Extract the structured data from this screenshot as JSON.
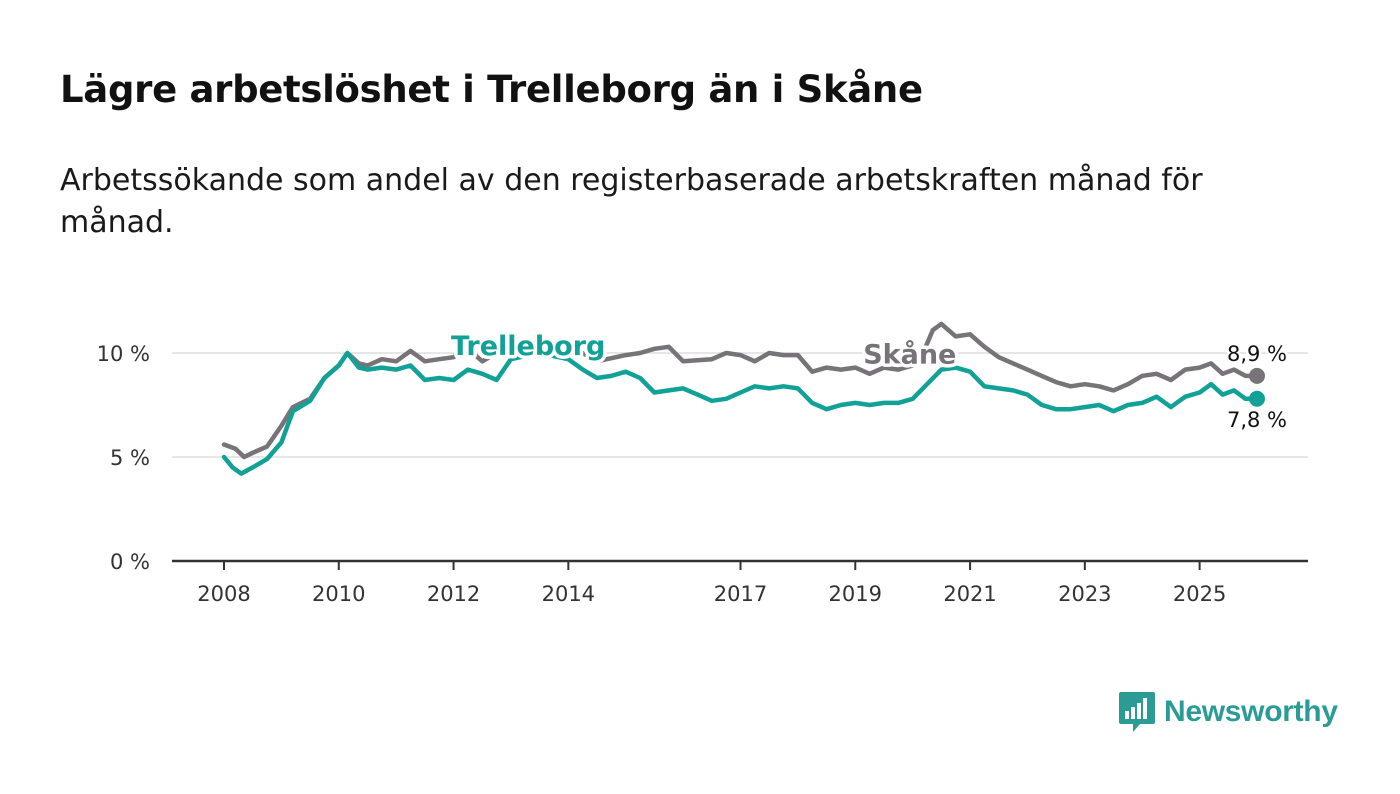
{
  "title": "Lägre arbetslöshet i Trelleborg än i Skåne",
  "subtitle": "Arbetssökande som andel av den registerbaserade arbetskraften månad för månad.",
  "brand": {
    "name": "Newsworthy",
    "icon": "bar-chart-bubble-icon",
    "color": "#2b9c95"
  },
  "colors": {
    "skane": "#777379",
    "trelleborg": "#12a196",
    "grid": "#dddddd",
    "axis": "#333333"
  },
  "chart_data": {
    "type": "line",
    "title": "Lägre arbetslöshet i Trelleborg än i Skåne",
    "xlabel": "",
    "ylabel": "",
    "xlim": [
      2008.0,
      2026.0
    ],
    "ylim": [
      0,
      10
    ],
    "y_ticks": [
      0,
      5,
      10
    ],
    "y_tick_labels": [
      "0 %",
      "5 %",
      "10 %"
    ],
    "x_ticks": [
      2008,
      2010,
      2012,
      2014,
      2017,
      2019,
      2021,
      2023,
      2025
    ],
    "x_tick_labels": [
      "2008",
      "2010",
      "2012",
      "2014",
      "2017",
      "2019",
      "2021",
      "2023",
      "2025"
    ],
    "grid": true,
    "series": [
      {
        "name": "Skåne",
        "color": "#777379",
        "label_position": "inline",
        "end_label": "8,9 %",
        "points": [
          [
            2008.0,
            5.6
          ],
          [
            2008.2,
            5.4
          ],
          [
            2008.35,
            5.0
          ],
          [
            2008.5,
            5.2
          ],
          [
            2008.75,
            5.5
          ],
          [
            2009.0,
            6.5
          ],
          [
            2009.2,
            7.4
          ],
          [
            2009.5,
            7.8
          ],
          [
            2009.75,
            8.8
          ],
          [
            2010.0,
            9.4
          ],
          [
            2010.15,
            10.0
          ],
          [
            2010.35,
            9.5
          ],
          [
            2010.5,
            9.4
          ],
          [
            2010.75,
            9.7
          ],
          [
            2011.0,
            9.6
          ],
          [
            2011.25,
            10.1
          ],
          [
            2011.5,
            9.6
          ],
          [
            2011.75,
            9.7
          ],
          [
            2012.0,
            9.8
          ],
          [
            2012.25,
            10.2
          ],
          [
            2012.5,
            9.6
          ],
          [
            2012.75,
            10.0
          ],
          [
            2013.0,
            10.2
          ],
          [
            2013.5,
            10.4
          ],
          [
            2014.0,
            10.4
          ],
          [
            2014.5,
            9.6
          ],
          [
            2015.0,
            9.9
          ],
          [
            2015.25,
            10.0
          ],
          [
            2015.5,
            10.2
          ],
          [
            2015.75,
            10.3
          ],
          [
            2016.0,
            9.6
          ],
          [
            2016.5,
            9.7
          ],
          [
            2016.75,
            10.0
          ],
          [
            2017.0,
            9.9
          ],
          [
            2017.25,
            9.6
          ],
          [
            2017.5,
            10.0
          ],
          [
            2017.75,
            9.9
          ],
          [
            2018.0,
            9.9
          ],
          [
            2018.25,
            9.1
          ],
          [
            2018.5,
            9.3
          ],
          [
            2018.75,
            9.2
          ],
          [
            2019.0,
            9.3
          ],
          [
            2019.25,
            9.0
          ],
          [
            2019.5,
            9.3
          ],
          [
            2019.75,
            9.2
          ],
          [
            2020.0,
            9.4
          ],
          [
            2020.15,
            9.8
          ],
          [
            2020.35,
            11.1
          ],
          [
            2020.5,
            11.4
          ],
          [
            2020.75,
            10.8
          ],
          [
            2021.0,
            10.9
          ],
          [
            2021.25,
            10.3
          ],
          [
            2021.5,
            9.8
          ],
          [
            2021.75,
            9.5
          ],
          [
            2022.0,
            9.2
          ],
          [
            2022.25,
            8.9
          ],
          [
            2022.5,
            8.6
          ],
          [
            2022.75,
            8.4
          ],
          [
            2023.0,
            8.5
          ],
          [
            2023.25,
            8.4
          ],
          [
            2023.5,
            8.2
          ],
          [
            2023.75,
            8.5
          ],
          [
            2024.0,
            8.9
          ],
          [
            2024.25,
            9.0
          ],
          [
            2024.5,
            8.7
          ],
          [
            2024.75,
            9.2
          ],
          [
            2025.0,
            9.3
          ],
          [
            2025.2,
            9.5
          ],
          [
            2025.4,
            9.0
          ],
          [
            2025.6,
            9.2
          ],
          [
            2025.8,
            8.9
          ],
          [
            2026.0,
            8.9
          ]
        ]
      },
      {
        "name": "Trelleborg",
        "color": "#12a196",
        "label_position": "inline",
        "end_label": "7,8 %",
        "points": [
          [
            2008.0,
            5.0
          ],
          [
            2008.15,
            4.5
          ],
          [
            2008.3,
            4.2
          ],
          [
            2008.5,
            4.5
          ],
          [
            2008.75,
            4.9
          ],
          [
            2009.0,
            5.7
          ],
          [
            2009.2,
            7.2
          ],
          [
            2009.5,
            7.7
          ],
          [
            2009.75,
            8.8
          ],
          [
            2010.0,
            9.4
          ],
          [
            2010.15,
            10.0
          ],
          [
            2010.35,
            9.3
          ],
          [
            2010.5,
            9.2
          ],
          [
            2010.75,
            9.3
          ],
          [
            2011.0,
            9.2
          ],
          [
            2011.25,
            9.4
          ],
          [
            2011.5,
            8.7
          ],
          [
            2011.75,
            8.8
          ],
          [
            2012.0,
            8.7
          ],
          [
            2012.25,
            9.2
          ],
          [
            2012.5,
            9.0
          ],
          [
            2012.75,
            8.7
          ],
          [
            2013.0,
            9.7
          ],
          [
            2013.5,
            10.0
          ],
          [
            2014.0,
            9.7
          ],
          [
            2014.25,
            9.2
          ],
          [
            2014.5,
            8.8
          ],
          [
            2014.75,
            8.9
          ],
          [
            2015.0,
            9.1
          ],
          [
            2015.25,
            8.8
          ],
          [
            2015.5,
            8.1
          ],
          [
            2015.75,
            8.2
          ],
          [
            2016.0,
            8.3
          ],
          [
            2016.25,
            8.0
          ],
          [
            2016.5,
            7.7
          ],
          [
            2016.75,
            7.8
          ],
          [
            2017.0,
            8.1
          ],
          [
            2017.25,
            8.4
          ],
          [
            2017.5,
            8.3
          ],
          [
            2017.75,
            8.4
          ],
          [
            2018.0,
            8.3
          ],
          [
            2018.25,
            7.6
          ],
          [
            2018.5,
            7.3
          ],
          [
            2018.75,
            7.5
          ],
          [
            2019.0,
            7.6
          ],
          [
            2019.25,
            7.5
          ],
          [
            2019.5,
            7.6
          ],
          [
            2019.75,
            7.6
          ],
          [
            2020.0,
            7.8
          ],
          [
            2020.25,
            8.5
          ],
          [
            2020.5,
            9.2
          ],
          [
            2020.75,
            9.3
          ],
          [
            2021.0,
            9.1
          ],
          [
            2021.25,
            8.4
          ],
          [
            2021.5,
            8.3
          ],
          [
            2021.75,
            8.2
          ],
          [
            2022.0,
            8.0
          ],
          [
            2022.25,
            7.5
          ],
          [
            2022.5,
            7.3
          ],
          [
            2022.75,
            7.3
          ],
          [
            2023.0,
            7.4
          ],
          [
            2023.25,
            7.5
          ],
          [
            2023.5,
            7.2
          ],
          [
            2023.75,
            7.5
          ],
          [
            2024.0,
            7.6
          ],
          [
            2024.25,
            7.9
          ],
          [
            2024.5,
            7.4
          ],
          [
            2024.75,
            7.9
          ],
          [
            2025.0,
            8.1
          ],
          [
            2025.2,
            8.5
          ],
          [
            2025.4,
            8.0
          ],
          [
            2025.6,
            8.2
          ],
          [
            2025.8,
            7.8
          ],
          [
            2026.0,
            7.8
          ]
        ]
      }
    ]
  }
}
